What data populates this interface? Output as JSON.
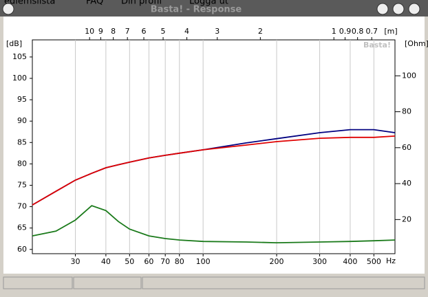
{
  "window": {
    "title": "Basta! - Response",
    "background_menu": [
      "ediemslista",
      "FAQ",
      "Din profil",
      "Logga ut"
    ]
  },
  "chart_data": {
    "type": "line",
    "log_x": true,
    "grid": true,
    "watermark": "Basta!",
    "x_unit": "Hz",
    "x2_unit": "[m]",
    "y_unit": "[dB]",
    "y2_unit": "[Ohm]",
    "xlim": [
      20,
      610
    ],
    "xticks": [
      30,
      40,
      50,
      60,
      70,
      80,
      100,
      200,
      300,
      400,
      500
    ],
    "x2ticks": [
      {
        "value": 34.3,
        "label": "10"
      },
      {
        "value": 38.1,
        "label": "9"
      },
      {
        "value": 42.9,
        "label": "8"
      },
      {
        "value": 49,
        "label": "7"
      },
      {
        "value": 57.2,
        "label": "6"
      },
      {
        "value": 68.6,
        "label": "5"
      },
      {
        "value": 85.8,
        "label": "4"
      },
      {
        "value": 114.3,
        "label": "3"
      },
      {
        "value": 171.5,
        "label": "2"
      },
      {
        "value": 343,
        "label": "1"
      },
      {
        "value": 381.1,
        "label": "0.9"
      },
      {
        "value": 428.8,
        "label": "0.8"
      },
      {
        "value": 490,
        "label": "0.7"
      }
    ],
    "ylim": [
      59,
      109
    ],
    "yticks": [
      60,
      65,
      70,
      75,
      80,
      85,
      90,
      95,
      100,
      105
    ],
    "y2lim": [
      1,
      120
    ],
    "y2ticks": [
      20,
      40,
      60,
      80,
      100
    ],
    "x": [
      20,
      25,
      30,
      35,
      40,
      45,
      50,
      60,
      70,
      80,
      100,
      150,
      200,
      300,
      400,
      500,
      610
    ],
    "series": [
      {
        "color": "#000080",
        "values": [
          70.4,
          73.6,
          76.2,
          77.8,
          79.1,
          79.8,
          80.4,
          81.4,
          82.0,
          82.5,
          83.3,
          84.9,
          85.9,
          87.3,
          88.0,
          88.0,
          87.3
        ]
      },
      {
        "color": "#e00000",
        "values": [
          70.4,
          73.6,
          76.2,
          77.8,
          79.1,
          79.8,
          80.4,
          81.4,
          82.0,
          82.5,
          83.3,
          84.4,
          85.2,
          86.0,
          86.2,
          86.2,
          86.5
        ]
      },
      {
        "color": "#1a7a1a",
        "axis": "y2",
        "values": [
          10.9,
          13.6,
          19.7,
          27.7,
          25.0,
          18.9,
          14.7,
          10.9,
          9.4,
          8.6,
          7.8,
          7.5,
          7.1,
          7.5,
          7.8,
          8.2,
          8.6
        ]
      }
    ]
  }
}
